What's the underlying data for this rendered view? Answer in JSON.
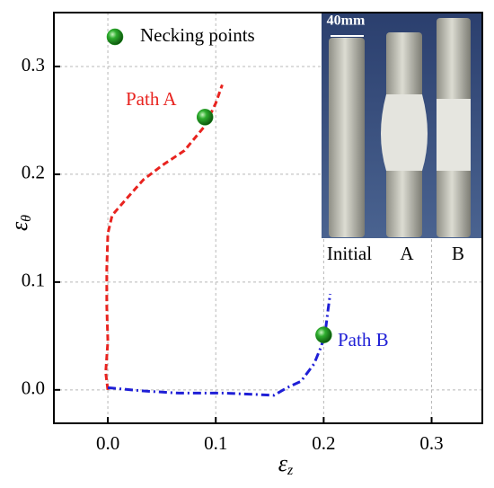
{
  "chart_data": {
    "type": "line",
    "x_label": {
      "symbol": "ε",
      "subscript": "z"
    },
    "y_label": {
      "symbol": "ε",
      "subscript": "θ"
    },
    "xlim": [
      -0.05,
      0.347
    ],
    "ylim": [
      -0.031,
      0.35
    ],
    "xticks": [
      {
        "value": 0,
        "label": "0.0"
      },
      0.1,
      0.2,
      0.3
    ],
    "yticks": [
      {
        "value": 0,
        "label": "0.0"
      },
      0.1,
      0.2,
      0.3
    ],
    "grid": true,
    "series": [
      {
        "name": "Path A",
        "type": "line",
        "color": "#e8231f",
        "dash": "dashed",
        "x": [
          0,
          -0.002,
          0,
          -0.001,
          -0.001,
          0,
          0.004,
          0.017,
          0.033,
          0.05,
          0.071,
          0.09,
          0.1,
          0.106
        ],
        "values": [
          0,
          0.016,
          0.045,
          0.078,
          0.112,
          0.145,
          0.162,
          0.177,
          0.195,
          0.208,
          0.222,
          0.245,
          0.266,
          0.283
        ]
      },
      {
        "name": "Path B",
        "type": "line",
        "color": "#1f1fd6",
        "dash": "dashdot",
        "x": [
          0,
          0.033,
          0.066,
          0.108,
          0.154,
          0.166,
          0.179,
          0.191,
          0.198,
          0.202,
          0.204,
          0.206
        ],
        "values": [
          0.002,
          -0.001,
          -0.003,
          -0.003,
          -0.005,
          0.002,
          0.008,
          0.024,
          0.041,
          0.058,
          0.074,
          0.089
        ]
      },
      {
        "name": "Necking points",
        "type": "scatter",
        "color": "#1a9a1a",
        "x": [
          0.09,
          0.2
        ],
        "values": [
          0.253,
          0.051
        ]
      }
    ],
    "inset": {
      "scale_label": "40mm",
      "labels": [
        "Initial",
        "A",
        "B"
      ]
    }
  }
}
